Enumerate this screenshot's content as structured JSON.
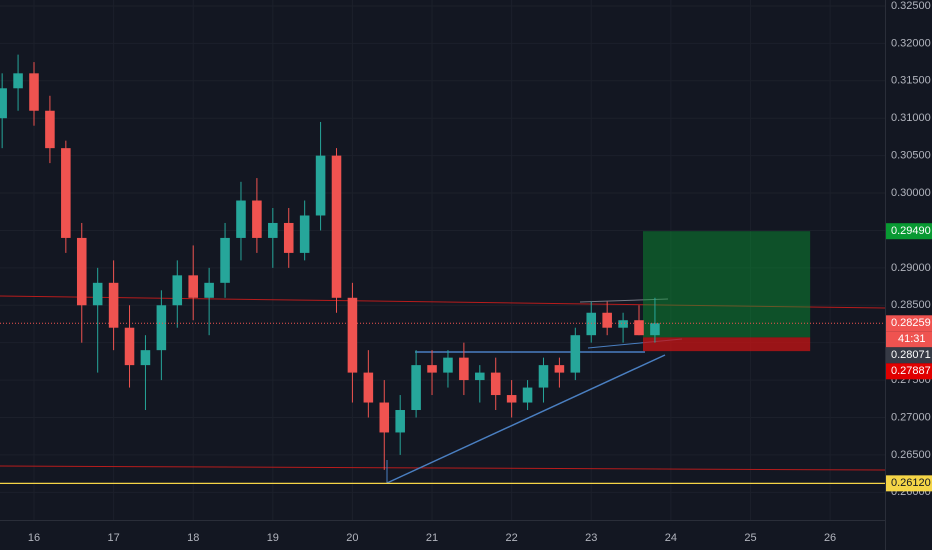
{
  "chart_data": {
    "type": "candlestick",
    "x": [
      15.6,
      15.8,
      16.0,
      16.2,
      16.4,
      16.6,
      16.8,
      17.0,
      17.2,
      17.4,
      17.6,
      17.8,
      18.0,
      18.2,
      18.4,
      18.6,
      18.8,
      19.0,
      19.2,
      19.4,
      19.6,
      19.8,
      20.0,
      20.2,
      20.4,
      20.6,
      20.8,
      21.0,
      21.2,
      21.4,
      21.6,
      21.8,
      22.0,
      22.2,
      22.4,
      22.6,
      22.8,
      23.0,
      23.2,
      23.4,
      23.6,
      23.8
    ],
    "open": [
      0.31,
      0.314,
      0.316,
      0.311,
      0.306,
      0.294,
      0.285,
      0.288,
      0.282,
      0.277,
      0.279,
      0.285,
      0.289,
      0.286,
      0.288,
      0.294,
      0.299,
      0.294,
      0.296,
      0.292,
      0.297,
      0.305,
      0.286,
      0.276,
      0.272,
      0.268,
      0.271,
      0.277,
      0.276,
      0.278,
      0.275,
      0.276,
      0.273,
      0.272,
      0.274,
      0.277,
      0.276,
      0.281,
      0.284,
      0.282,
      0.283,
      0.281
    ],
    "high": [
      0.316,
      0.3185,
      0.3175,
      0.313,
      0.307,
      0.296,
      0.29,
      0.291,
      0.285,
      0.281,
      0.287,
      0.291,
      0.293,
      0.29,
      0.296,
      0.3015,
      0.302,
      0.298,
      0.298,
      0.299,
      0.3095,
      0.306,
      0.288,
      0.279,
      0.275,
      0.273,
      0.279,
      0.279,
      0.279,
      0.28,
      0.277,
      0.278,
      0.275,
      0.275,
      0.278,
      0.278,
      0.282,
      0.2855,
      0.2855,
      0.284,
      0.285,
      0.286
    ],
    "low": [
      0.306,
      0.311,
      0.309,
      0.304,
      0.292,
      0.28,
      0.276,
      0.279,
      0.274,
      0.271,
      0.275,
      0.282,
      0.283,
      0.281,
      0.286,
      0.291,
      0.292,
      0.29,
      0.29,
      0.291,
      0.295,
      0.284,
      0.272,
      0.27,
      0.263,
      0.265,
      0.27,
      0.273,
      0.274,
      0.273,
      0.272,
      0.271,
      0.27,
      0.271,
      0.272,
      0.274,
      0.275,
      0.28,
      0.281,
      0.28,
      0.281,
      0.28
    ],
    "close": [
      0.314,
      0.316,
      0.311,
      0.306,
      0.294,
      0.285,
      0.288,
      0.282,
      0.277,
      0.279,
      0.285,
      0.289,
      0.286,
      0.288,
      0.294,
      0.299,
      0.294,
      0.296,
      0.292,
      0.297,
      0.305,
      0.286,
      0.276,
      0.272,
      0.268,
      0.271,
      0.277,
      0.276,
      0.278,
      0.275,
      0.276,
      0.273,
      0.272,
      0.274,
      0.277,
      0.276,
      0.281,
      0.284,
      0.282,
      0.283,
      0.281,
      0.28259
    ],
    "xlim": [
      15.573,
      26.69
    ],
    "xticks": [
      16,
      17,
      18,
      19,
      20,
      21,
      22,
      23,
      24,
      25,
      26
    ],
    "ylim": [
      0.2563,
      0.3258
    ],
    "yticks": [
      {
        "value": 0.26,
        "label": "0.26000"
      },
      {
        "value": 0.265,
        "label": "0.26500"
      },
      {
        "value": 0.27,
        "label": "0.27000"
      },
      {
        "value": 0.275,
        "label": "0.27500"
      },
      {
        "value": 0.28,
        "label": "0.28000"
      },
      {
        "value": 0.285,
        "label": "0.28500"
      },
      {
        "value": 0.29,
        "label": "0.29000"
      },
      {
        "value": 0.295,
        "label": "0.29500"
      },
      {
        "value": 0.3,
        "label": "0.30000"
      },
      {
        "value": 0.305,
        "label": "0.30500"
      },
      {
        "value": 0.31,
        "label": "0.31000"
      },
      {
        "value": 0.315,
        "label": "0.31500"
      },
      {
        "value": 0.32,
        "label": "0.32000"
      },
      {
        "value": 0.325,
        "label": "0.32500"
      }
    ],
    "position": {
      "take_profit": {
        "value": 0.2949,
        "label": "0.29490"
      },
      "entry": {
        "value": 0.28071,
        "label": "0.28071"
      },
      "stop": {
        "value": 0.27887,
        "label": "0.27887"
      }
    },
    "last_price": {
      "value": 0.28259,
      "label": "0.28259",
      "countdown": "41:31"
    },
    "level": {
      "value": 0.2612,
      "label": "0.26120"
    }
  }
}
